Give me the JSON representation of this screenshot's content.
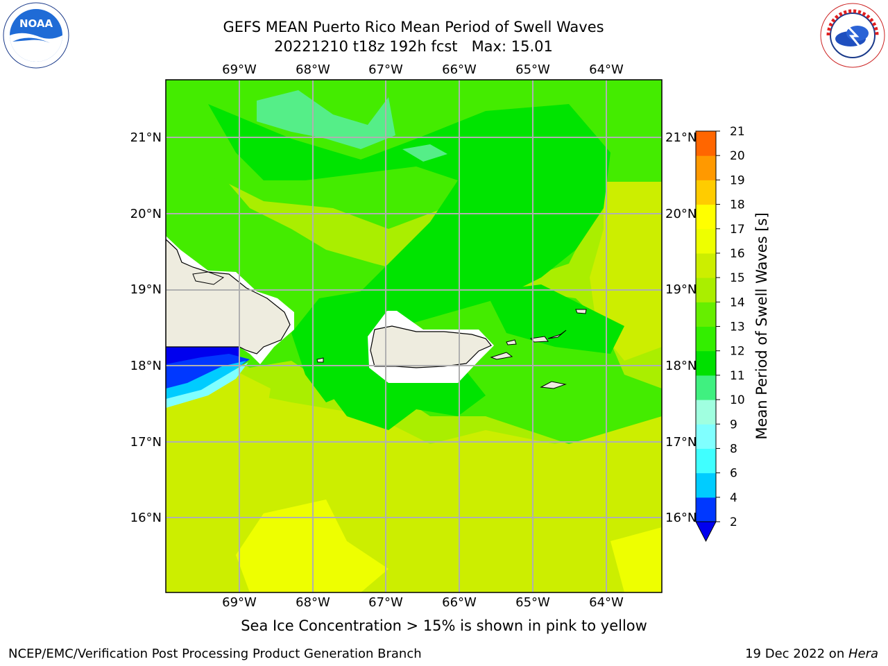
{
  "title": {
    "line1": "GEFS MEAN Puerto Rico Mean Period of Swell Waves",
    "line2": "20221210 t18z 192h fcst   Max: 15.01"
  },
  "map": {
    "lon_labels": [
      "69°W",
      "68°W",
      "67°W",
      "66°W",
      "65°W",
      "64°W"
    ],
    "lat_labels": [
      "21°N",
      "20°N",
      "19°N",
      "18°N",
      "17°N",
      "16°N"
    ]
  },
  "colorbar": {
    "label": "Mean Period of Swell Waves [s]",
    "ticks": [
      "21",
      "20",
      "19",
      "18",
      "17",
      "16",
      "15",
      "14",
      "13",
      "12",
      "11",
      "10",
      "9",
      "8",
      "6",
      "4",
      "2"
    ],
    "colors": [
      "#0038ff",
      "#00ccff",
      "#40ffff",
      "#80ffff",
      "#a0ffe0",
      "#40f080",
      "#00e000",
      "#33ee00",
      "#66ee00",
      "#aaee00",
      "#ccee00",
      "#eeff00",
      "#ffff00",
      "#ffcc00",
      "#ff9900",
      "#ff6600",
      "#ff3300",
      "#ff0000"
    ],
    "extend_color": "#0000ee"
  },
  "field_colors": {
    "green_dark": "#00e400",
    "green_mid": "#44ec00",
    "yellow_green": "#aaee00",
    "yellow_lime": "#ccee00",
    "yellow": "#eeff00",
    "mint": "#55ee88",
    "blue": "#0000ee",
    "cyan": "#00ccff",
    "land": "#eeecdf"
  },
  "logos": {
    "noaa": "NOAA",
    "nws": "NATIONAL WEATHER SERVICE"
  },
  "caption": "Sea Ice Concentration > 15% is shown in pink to yellow",
  "footer": {
    "left": "NCEP/EMC/Verification Post Processing Product Generation Branch",
    "right_prefix": "19 Dec 2022 on ",
    "right_host": "Hera"
  }
}
